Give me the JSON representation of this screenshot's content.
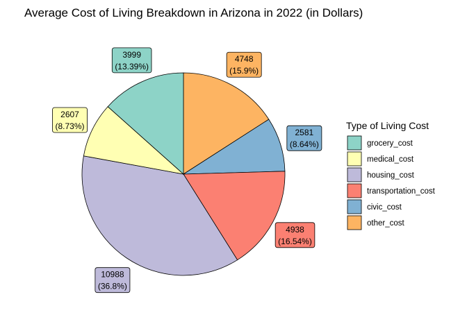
{
  "chart_data": {
    "type": "pie",
    "title": "Average Cost of Living Breakdown in Arizona in 2022 (in Dollars)",
    "legend_title": "Type of Living Cost",
    "legend_position": "right",
    "slices": [
      {
        "name": "grocery_cost",
        "value": 3999,
        "pct_label": "(13.39%)",
        "color": "#8DD3C7"
      },
      {
        "name": "medical_cost",
        "value": 2607,
        "pct_label": "(8.73%)",
        "color": "#FFFFB3"
      },
      {
        "name": "housing_cost",
        "value": 10988,
        "pct_label": "(36.8%)",
        "color": "#BEBADA"
      },
      {
        "name": "transportation_cost",
        "value": 4938,
        "pct_label": "(16.54%)",
        "color": "#FB8072"
      },
      {
        "name": "civic_cost",
        "value": 2581,
        "pct_label": "(8.64%)",
        "color": "#80B1D3"
      },
      {
        "name": "other_cost",
        "value": 4748,
        "pct_label": "(15.9%)",
        "color": "#FDB462"
      }
    ]
  }
}
